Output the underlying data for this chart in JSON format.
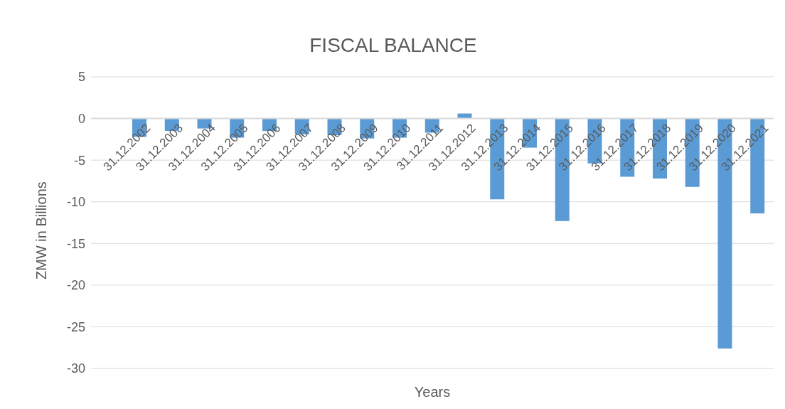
{
  "chart_data": {
    "type": "bar",
    "title": "FISCAL BALANCE",
    "xlabel": "Years",
    "ylabel": "ZMW in Billions",
    "categories": [
      "31.12.2002",
      "31.12.2003",
      "31.12.2004",
      "31.12.2005",
      "31.12.2006",
      "31.12.2007",
      "31.12.2008",
      "31.12.2009",
      "31.12.2010",
      "31.12.2011",
      "31.12.2012",
      "31.12.2013",
      "31.12.2014",
      "31.12.2015",
      "31.12.2016",
      "31.12.2017",
      "31.12.2018",
      "31.12.2019",
      "31.12.2020",
      "31.12.2021"
    ],
    "values": [
      -2.2,
      -1.5,
      -1.2,
      -2.3,
      -1.5,
      -1.9,
      -2.0,
      -2.4,
      -2.3,
      -1.7,
      0.6,
      -9.7,
      -3.5,
      -12.3,
      -5.4,
      -7.0,
      -7.2,
      -8.2,
      -27.6,
      -11.4
    ],
    "color": "#5b9bd5",
    "ylim": [
      -30,
      5
    ],
    "yticks": [
      -30,
      -25,
      -20,
      -15,
      -10,
      -5,
      0,
      5
    ],
    "grid": "y"
  }
}
